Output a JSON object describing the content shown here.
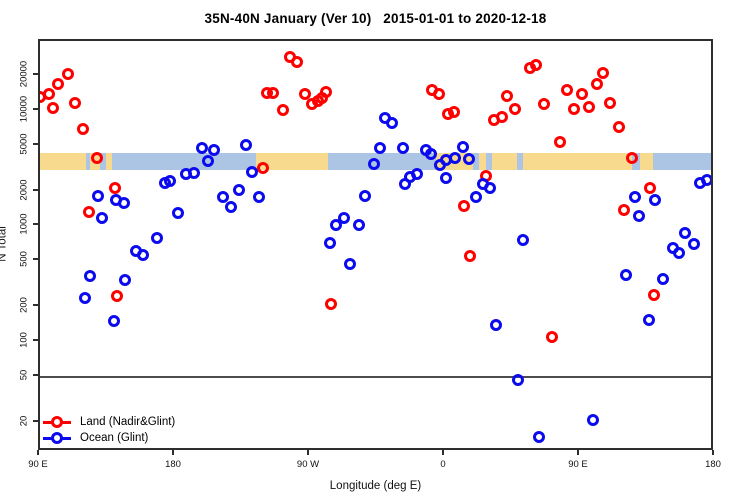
{
  "chart_data": {
    "type": "scatter",
    "title": "35N-40N January (Ver 10)   2015-01-01 to 2020-12-18",
    "xlabel": "Longitude (deg E)",
    "ylabel": "N Total",
    "x_axis": {
      "description": "degrees eastward from 90E, axis wraps around the globe",
      "range": [
        0,
        450
      ],
      "ticks": [
        {
          "pos": 0,
          "label": "90 E"
        },
        {
          "pos": 90,
          "label": "180"
        },
        {
          "pos": 180,
          "label": "90 W"
        },
        {
          "pos": 270,
          "label": "0"
        },
        {
          "pos": 360,
          "label": "90 E"
        },
        {
          "pos": 450,
          "label": "180"
        }
      ]
    },
    "y_axis": {
      "scale": "log10",
      "range": [
        11,
        40000
      ],
      "top_tick_value": 20000,
      "ticks": [
        {
          "value": 20000,
          "label": "20000"
        },
        {
          "value": 10000,
          "label": "10000"
        },
        {
          "value": 5000,
          "label": "5000"
        },
        {
          "value": 2000,
          "label": "2000"
        },
        {
          "value": 1000,
          "label": "1000"
        },
        {
          "value": 500,
          "label": "500"
        },
        {
          "value": 200,
          "label": "200"
        },
        {
          "value": 100,
          "label": "100"
        },
        {
          "value": 50,
          "label": "50"
        },
        {
          "value": 20,
          "label": "20"
        }
      ]
    },
    "reference_line": {
      "value": 50,
      "color": "#4d4d4d"
    },
    "surface_band": {
      "y_range": [
        3070,
        4300
      ],
      "land_color": "#f7da8d",
      "ocean_color": "#adc5e5",
      "segments": [
        {
          "start": 0,
          "end": 30.7,
          "surface": "land"
        },
        {
          "start": 30.7,
          "end": 33.3,
          "surface": "ocean"
        },
        {
          "start": 33.3,
          "end": 40,
          "surface": "land"
        },
        {
          "start": 40,
          "end": 44,
          "surface": "ocean"
        },
        {
          "start": 44,
          "end": 48,
          "surface": "land"
        },
        {
          "start": 48,
          "end": 144,
          "surface": "ocean"
        },
        {
          "start": 144,
          "end": 192,
          "surface": "land"
        },
        {
          "start": 192,
          "end": 264,
          "surface": "ocean"
        },
        {
          "start": 264,
          "end": 288.7,
          "surface": "land"
        },
        {
          "start": 288.7,
          "end": 292.7,
          "surface": "ocean"
        },
        {
          "start": 292.7,
          "end": 297.3,
          "surface": "land"
        },
        {
          "start": 297.3,
          "end": 301.3,
          "surface": "ocean"
        },
        {
          "start": 301.3,
          "end": 318,
          "surface": "land"
        },
        {
          "start": 318,
          "end": 322,
          "surface": "ocean"
        },
        {
          "start": 322,
          "end": 394.7,
          "surface": "land"
        },
        {
          "start": 394.7,
          "end": 400,
          "surface": "ocean"
        },
        {
          "start": 400,
          "end": 408.7,
          "surface": "land"
        },
        {
          "start": 408.7,
          "end": 450,
          "surface": "ocean"
        }
      ]
    },
    "series": [
      {
        "name": "Land (Nadir&Glint)",
        "color": "#ff0000",
        "points": [
          [
            0.2,
            13200
          ],
          [
            5.8,
            14100
          ],
          [
            8.7,
            10600
          ],
          [
            12,
            17100
          ],
          [
            18.7,
            20800
          ],
          [
            23.1,
            11700
          ],
          [
            28.9,
            7000
          ],
          [
            32.5,
            1340
          ],
          [
            38,
            3920
          ],
          [
            49.8,
            2160
          ],
          [
            51.3,
            250
          ],
          [
            148.7,
            3180
          ],
          [
            151.3,
            14300
          ],
          [
            155.3,
            14300
          ],
          [
            162,
            10100
          ],
          [
            166.5,
            29400
          ],
          [
            171.3,
            26600
          ],
          [
            176.9,
            13900
          ],
          [
            181.3,
            11500
          ],
          [
            185.1,
            12200
          ],
          [
            188,
            12800
          ],
          [
            190.9,
            14600
          ],
          [
            194.2,
            211
          ],
          [
            261.3,
            15000
          ],
          [
            266.2,
            14100
          ],
          [
            271.8,
            9440
          ],
          [
            276.2,
            9750
          ],
          [
            282.4,
            1500
          ],
          [
            286.4,
            553
          ],
          [
            297.5,
            2720
          ],
          [
            302.4,
            8260
          ],
          [
            308,
            8830
          ],
          [
            311.3,
            13400
          ],
          [
            316.9,
            10300
          ],
          [
            326.9,
            23600
          ],
          [
            330.9,
            24800
          ],
          [
            336.2,
            11400
          ],
          [
            341.3,
            110
          ],
          [
            346.4,
            5370
          ],
          [
            351.3,
            15000
          ],
          [
            356.2,
            10300
          ],
          [
            361.3,
            13900
          ],
          [
            365.8,
            10800
          ],
          [
            371.3,
            17100
          ],
          [
            375.3,
            21100
          ],
          [
            380.2,
            11700
          ],
          [
            385.8,
            7230
          ],
          [
            389.5,
            1370
          ],
          [
            394.7,
            3920
          ],
          [
            406.9,
            2160
          ],
          [
            409.5,
            254
          ]
        ]
      },
      {
        "name": "Ocean (Glint)",
        "color": "#0b0bee",
        "points": [
          [
            29.8,
            238
          ],
          [
            33.5,
            371
          ],
          [
            38.5,
            1820
          ],
          [
            41.5,
            1190
          ],
          [
            49.1,
            151
          ],
          [
            50.9,
            1680
          ],
          [
            56.2,
            1580
          ],
          [
            56.9,
            340
          ],
          [
            64,
            615
          ],
          [
            68.5,
            561
          ],
          [
            78,
            790
          ],
          [
            83.1,
            2360
          ],
          [
            86.9,
            2470
          ],
          [
            91.8,
            1290
          ],
          [
            97.5,
            2850
          ],
          [
            102.9,
            2870
          ],
          [
            108,
            4730
          ],
          [
            111.8,
            3670
          ],
          [
            116.2,
            4570
          ],
          [
            122,
            1800
          ],
          [
            127.3,
            1480
          ],
          [
            132.9,
            2060
          ],
          [
            137.5,
            5020
          ],
          [
            141.3,
            2950
          ],
          [
            145.8,
            1810
          ],
          [
            193.5,
            721
          ],
          [
            197.5,
            1030
          ],
          [
            202.4,
            1190
          ],
          [
            206.4,
            474
          ],
          [
            212.4,
            1020
          ],
          [
            216.9,
            1830
          ],
          [
            222.4,
            3480
          ],
          [
            226.9,
            4730
          ],
          [
            230.2,
            8710
          ],
          [
            234.7,
            7890
          ],
          [
            242,
            4730
          ],
          [
            243.5,
            2340
          ],
          [
            246.9,
            2670
          ],
          [
            251.3,
            2850
          ],
          [
            257.5,
            4600
          ],
          [
            260.9,
            4200
          ],
          [
            266.4,
            3370
          ],
          [
            270.9,
            3720
          ],
          [
            270.9,
            2600
          ],
          [
            276.9,
            3880
          ],
          [
            282,
            4850
          ],
          [
            285.8,
            3800
          ],
          [
            290.9,
            1800
          ],
          [
            295.3,
            2340
          ],
          [
            299.8,
            2130
          ],
          [
            304,
            140
          ],
          [
            318.5,
            47
          ],
          [
            322,
            757
          ],
          [
            332.5,
            15
          ],
          [
            368.7,
            21
          ],
          [
            390.9,
            378
          ],
          [
            396.9,
            1800
          ],
          [
            399.1,
            1230
          ],
          [
            405.8,
            153
          ],
          [
            410.2,
            1680
          ],
          [
            415.3,
            348
          ],
          [
            422,
            644
          ],
          [
            426.2,
            583
          ],
          [
            430.2,
            867
          ],
          [
            435.8,
            706
          ],
          [
            439.8,
            2380
          ],
          [
            444.7,
            2500
          ]
        ]
      }
    ],
    "legend_position": "bottom-left"
  }
}
